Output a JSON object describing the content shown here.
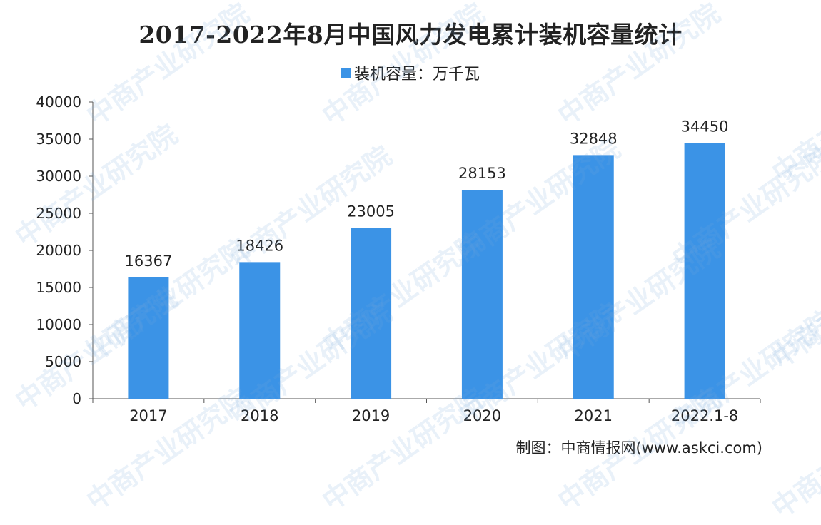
{
  "chart_data": {
    "type": "bar",
    "title": "2017-2022年8月中国风力发电累计装机容量统计",
    "legend": {
      "label": "装机容量：万千瓦",
      "placement": "top"
    },
    "categories": [
      "2017",
      "2018",
      "2019",
      "2020",
      "2021",
      "2022.1-8"
    ],
    "series": [
      {
        "name": "装机容量：万千瓦",
        "values": [
          16367,
          18426,
          23005,
          28153,
          32848,
          34450
        ]
      }
    ],
    "ylim": [
      0,
      40000
    ],
    "yticks": [
      0,
      5000,
      10000,
      15000,
      20000,
      25000,
      30000,
      35000,
      40000
    ],
    "bar_color": "#3b93e6",
    "grid": false
  },
  "source": "制图：中商情报网(www.askci.com)",
  "watermark": "中商产业研究院"
}
